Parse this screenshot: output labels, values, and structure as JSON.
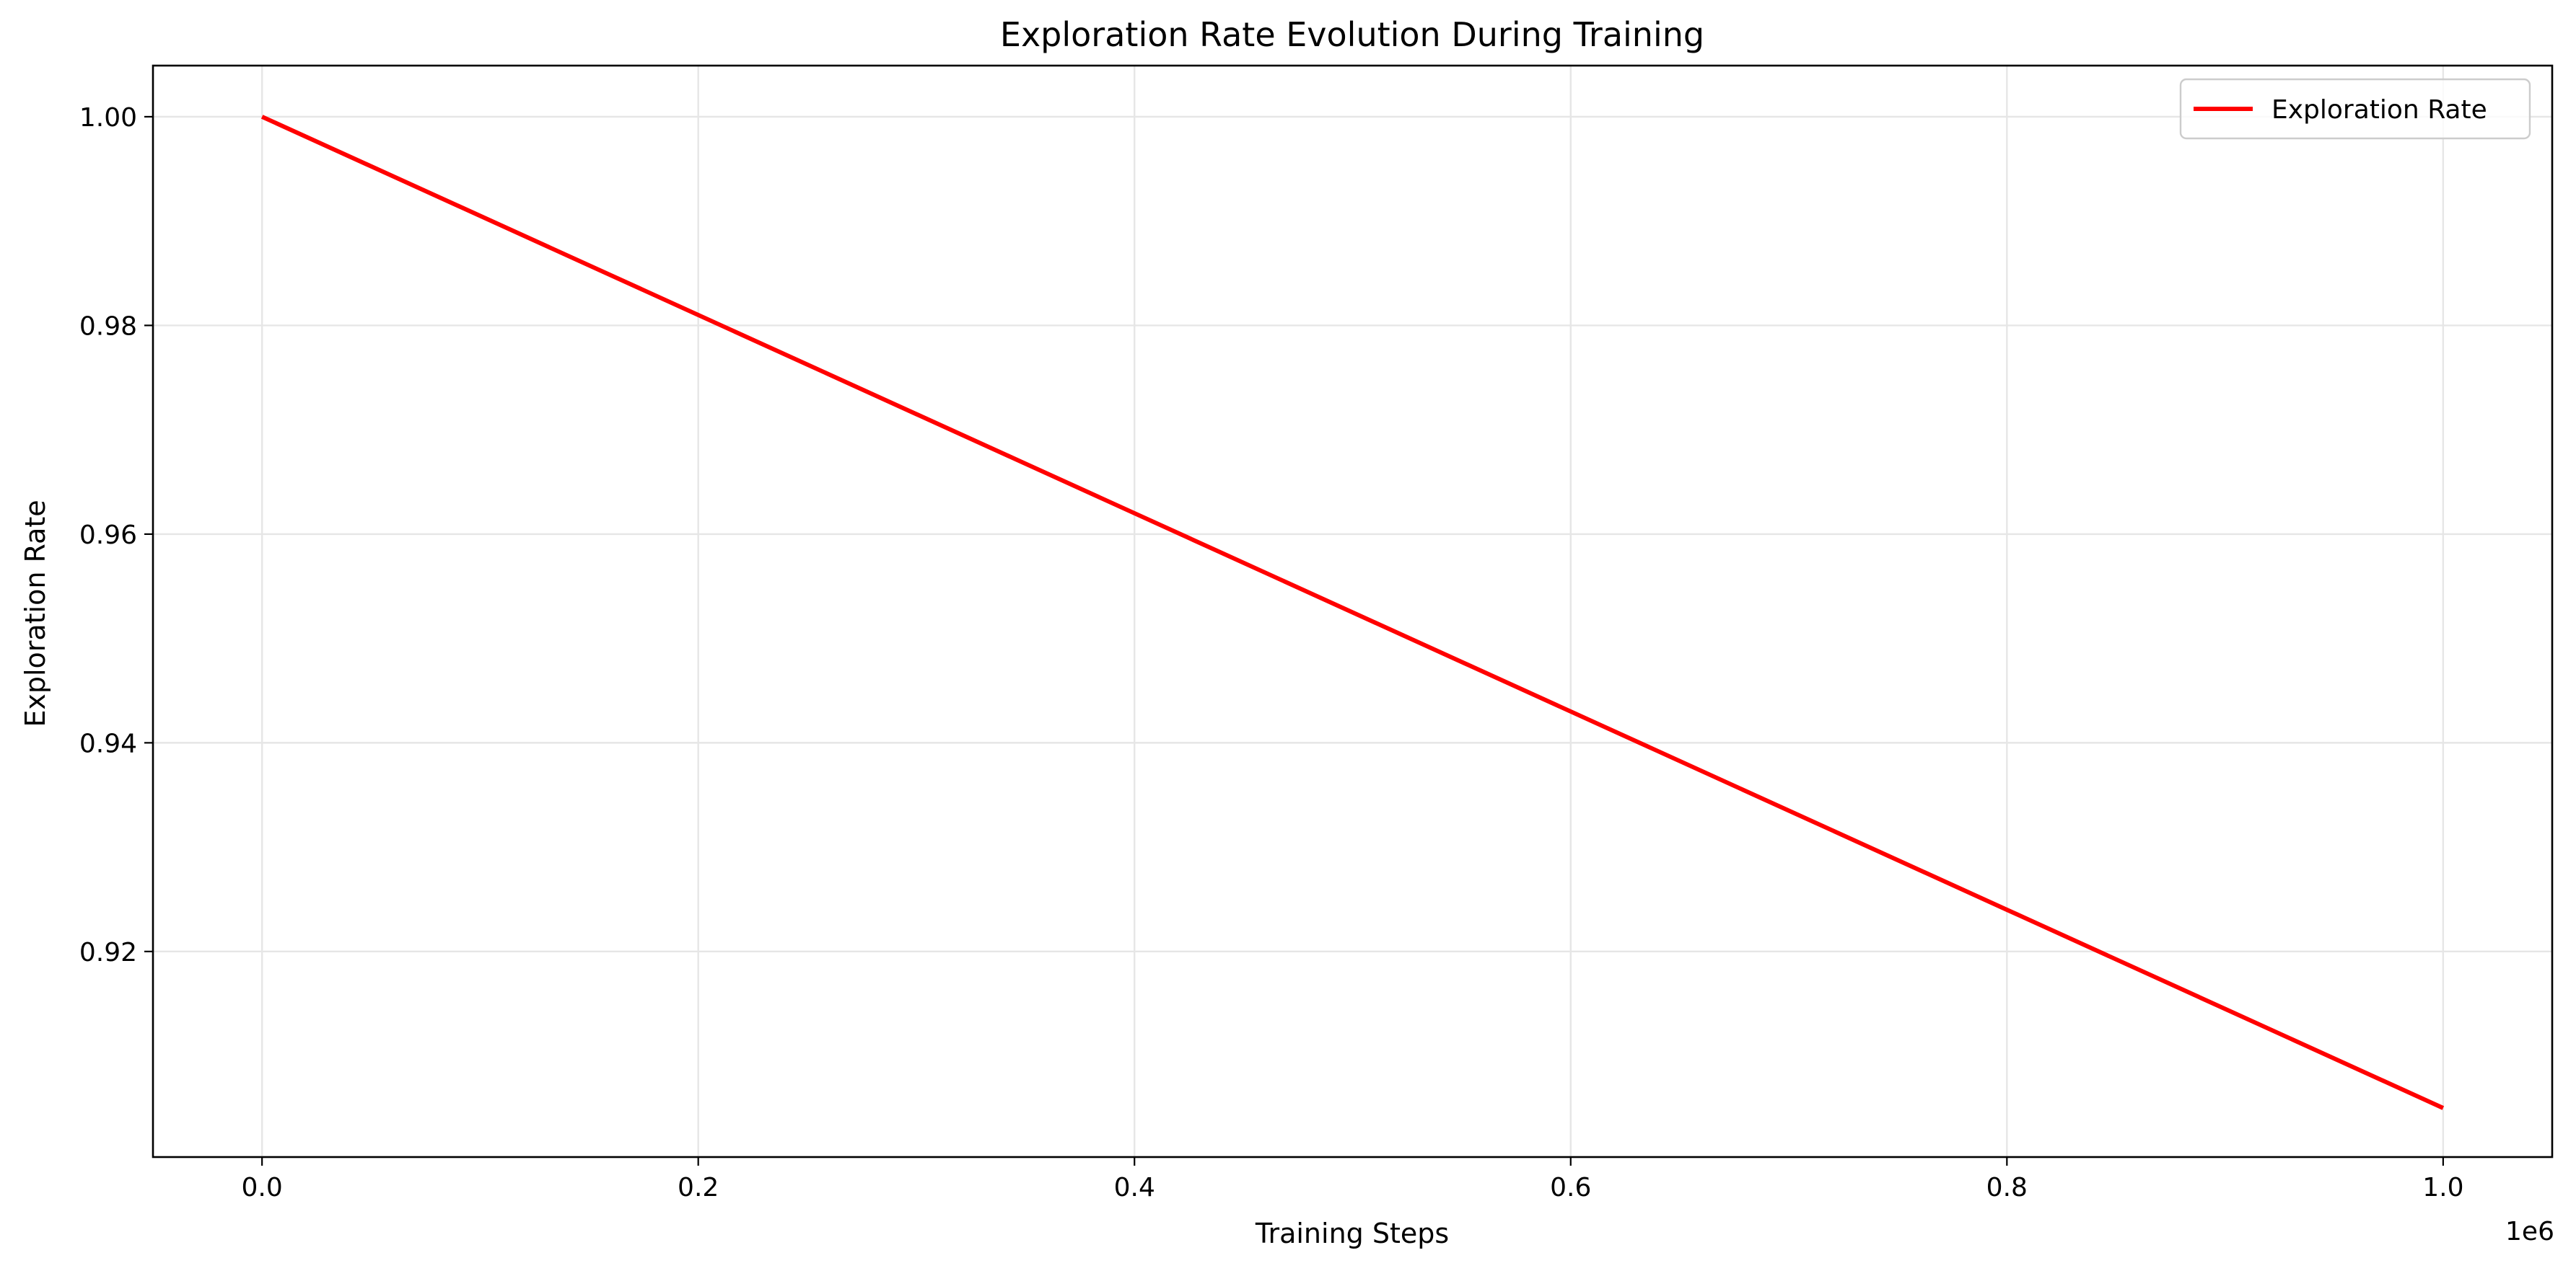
{
  "chart_data": {
    "type": "line",
    "title": "Exploration Rate Evolution During Training",
    "xlabel": "Training Steps",
    "ylabel": "Exploration Rate",
    "x_offset_label": "1e6",
    "xlim": [
      -0.05,
      1.05
    ],
    "ylim": [
      0.9003,
      1.0049
    ],
    "x_ticks": [
      0.0,
      0.2,
      0.4,
      0.6,
      0.8,
      1.0
    ],
    "x_tick_labels": [
      "0.0",
      "0.2",
      "0.4",
      "0.6",
      "0.8",
      "1.0"
    ],
    "y_ticks": [
      0.92,
      0.94,
      0.96,
      0.98,
      1.0
    ],
    "y_tick_labels": [
      "0.92",
      "0.94",
      "0.96",
      "0.98",
      "1.00"
    ],
    "grid": true,
    "legend_position": "top-right",
    "series": [
      {
        "name": "Exploration Rate",
        "color": "#ff0000",
        "x": [
          0.0,
          0.2,
          0.4,
          0.6,
          0.8,
          1.0
        ],
        "y": [
          1.0,
          0.981,
          0.962,
          0.943,
          0.924,
          0.905
        ]
      }
    ]
  }
}
